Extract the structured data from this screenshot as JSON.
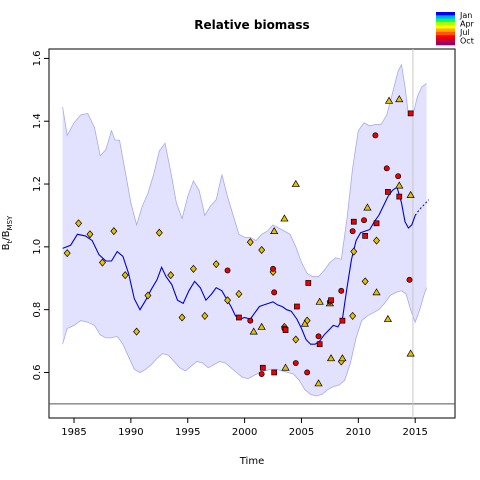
{
  "chart_data": {
    "type": "line",
    "title": "Relative biomass",
    "xlabel": "Time",
    "ylabel_main": "B",
    "ylabel_sub1": "t",
    "ylabel_mid": "/B",
    "ylabel_sub2": "MSY",
    "xlim": [
      1982.8,
      2018.5
    ],
    "ylim": [
      0.455,
      1.63
    ],
    "x_ticks": [
      1985,
      1990,
      1995,
      2000,
      2005,
      2010,
      2015
    ],
    "y_ticks": [
      0.6,
      0.8,
      1.0,
      1.2,
      1.4,
      1.6
    ],
    "x_tick_labels": [
      "1985",
      "1990",
      "1995",
      "2000",
      "2005",
      "2010",
      "2015"
    ],
    "y_tick_labels": [
      "0.6",
      "0.8",
      "1.0",
      "1.2",
      "1.4",
      "1.6"
    ],
    "reference_line_y": 0.5,
    "vertical_line_x": 2014.8,
    "legend": [
      "Jan",
      "Apr",
      "Jul",
      "Oct"
    ],
    "legend_colors": [
      "#0000ff",
      "#00aaff",
      "#00ff66",
      "#aaff00",
      "#ffff00",
      "#ffaa00",
      "#ff5500",
      "#ff0000",
      "#cc0033",
      "#990066"
    ],
    "colors": {
      "estimate_line": "#0000dd",
      "ci_fill": "#e2e2ff",
      "ci_edge": "#a8a8f0",
      "triangle_diamond_fill": "#e8c000",
      "red_fill": "#ee0000"
    },
    "estimate": {
      "x": [
        1984.0,
        1984.7,
        1985.3,
        1986.0,
        1986.6,
        1987.2,
        1987.8,
        1988.3,
        1988.8,
        1989.3,
        1989.8,
        1990.3,
        1990.8,
        1991.3,
        1991.8,
        1992.3,
        1992.7,
        1993.1,
        1993.6,
        1994.1,
        1994.6,
        1995.1,
        1995.6,
        1996.1,
        1996.6,
        1997.1,
        1997.5,
        1998.0,
        1998.4,
        1998.8,
        1999.2,
        1999.6,
        2000.0,
        2000.5,
        2000.9,
        2001.3,
        2001.7,
        2002.1,
        2002.5,
        2002.9,
        2003.3,
        2003.7,
        2004.1,
        2004.6,
        2005.0,
        2005.4,
        2005.8,
        2006.2,
        2006.6,
        2007.0,
        2007.4,
        2007.8,
        2008.2,
        2008.6,
        2009.0,
        2009.4,
        2009.8,
        2010.2,
        2010.6,
        2011.0,
        2011.4,
        2011.8,
        2012.2,
        2012.6,
        2013.0,
        2013.4,
        2013.8,
        2014.1,
        2014.4,
        2014.7,
        2015.0
      ],
      "y": [
        0.995,
        1.005,
        1.04,
        1.035,
        1.02,
        0.975,
        0.955,
        0.955,
        0.985,
        0.97,
        0.915,
        0.835,
        0.8,
        0.83,
        0.865,
        0.895,
        0.935,
        0.905,
        0.88,
        0.83,
        0.82,
        0.86,
        0.89,
        0.87,
        0.83,
        0.85,
        0.87,
        0.86,
        0.835,
        0.81,
        0.78,
        0.77,
        0.775,
        0.77,
        0.79,
        0.81,
        0.815,
        0.82,
        0.825,
        0.815,
        0.81,
        0.8,
        0.795,
        0.77,
        0.74,
        0.705,
        0.69,
        0.69,
        0.7,
        0.72,
        0.735,
        0.75,
        0.745,
        0.77,
        0.87,
        0.96,
        1.02,
        1.045,
        1.05,
        1.055,
        1.08,
        1.1,
        1.13,
        1.16,
        1.18,
        1.19,
        1.14,
        1.08,
        1.06,
        1.07,
        1.1
      ]
    },
    "forecast": {
      "x": [
        2015.0,
        2015.4,
        2015.8,
        2016.2
      ],
      "y": [
        1.1,
        1.12,
        1.135,
        1.15
      ]
    },
    "ci_upper": {
      "x": [
        1984.0,
        1984.4,
        1985.0,
        1985.6,
        1986.2,
        1986.8,
        1987.3,
        1987.8,
        1988.3,
        1988.6,
        1989.0,
        1989.5,
        1990.0,
        1990.5,
        1991.0,
        1991.5,
        1992.0,
        1992.5,
        1993.0,
        1993.5,
        1994.0,
        1994.5,
        1995.0,
        1995.5,
        1996.0,
        1996.5,
        1997.0,
        1997.5,
        1998.0,
        1998.5,
        1999.0,
        1999.5,
        2000.0,
        2000.5,
        2001.0,
        2001.5,
        2002.0,
        2002.5,
        2003.0,
        2003.5,
        2004.0,
        2004.5,
        2005.0,
        2005.5,
        2006.0,
        2006.5,
        2007.0,
        2007.5,
        2008.0,
        2008.5,
        2009.0,
        2009.5,
        2010.0,
        2010.5,
        2011.0,
        2011.5,
        2012.0,
        2012.5,
        2013.0,
        2013.5,
        2013.8,
        2014.1,
        2014.4,
        2014.8,
        2015.2,
        2015.6,
        2016.0
      ],
      "y": [
        1.445,
        1.355,
        1.395,
        1.42,
        1.425,
        1.38,
        1.29,
        1.31,
        1.37,
        1.34,
        1.34,
        1.24,
        1.14,
        1.07,
        1.13,
        1.17,
        1.23,
        1.305,
        1.33,
        1.24,
        1.14,
        1.09,
        1.16,
        1.21,
        1.18,
        1.1,
        1.13,
        1.15,
        1.23,
        1.16,
        1.1,
        1.04,
        1.03,
        1.03,
        1.02,
        1.04,
        1.05,
        1.07,
        1.06,
        1.05,
        1.04,
        1.0,
        0.95,
        0.915,
        0.905,
        0.905,
        0.925,
        0.95,
        0.965,
        0.96,
        1.09,
        1.25,
        1.37,
        1.395,
        1.385,
        1.39,
        1.39,
        1.42,
        1.49,
        1.56,
        1.58,
        1.51,
        1.42,
        1.42,
        1.48,
        1.51,
        1.52
      ]
    },
    "ci_lower": {
      "x": [
        1984.0,
        1984.4,
        1985.0,
        1985.6,
        1986.2,
        1986.8,
        1987.3,
        1987.8,
        1988.3,
        1988.8,
        1989.3,
        1989.8,
        1990.3,
        1990.8,
        1991.3,
        1991.8,
        1992.3,
        1992.8,
        1993.3,
        1993.8,
        1994.3,
        1994.8,
        1995.3,
        1995.8,
        1996.3,
        1996.8,
        1997.3,
        1997.8,
        1998.3,
        1998.8,
        1999.3,
        1999.8,
        2000.3,
        2000.8,
        2001.3,
        2001.8,
        2002.3,
        2002.8,
        2003.3,
        2003.8,
        2004.3,
        2004.8,
        2005.3,
        2005.8,
        2006.3,
        2006.8,
        2007.3,
        2007.8,
        2008.3,
        2008.8,
        2009.3,
        2009.8,
        2010.3,
        2010.8,
        2011.3,
        2011.8,
        2012.3,
        2012.8,
        2013.3,
        2013.8,
        2014.2,
        2014.6,
        2015.0,
        2015.4,
        2015.8,
        2016.0
      ],
      "y": [
        0.69,
        0.74,
        0.75,
        0.765,
        0.76,
        0.75,
        0.72,
        0.71,
        0.71,
        0.715,
        0.69,
        0.65,
        0.61,
        0.6,
        0.61,
        0.625,
        0.645,
        0.66,
        0.655,
        0.635,
        0.615,
        0.605,
        0.62,
        0.635,
        0.63,
        0.615,
        0.625,
        0.635,
        0.63,
        0.615,
        0.6,
        0.585,
        0.58,
        0.59,
        0.6,
        0.605,
        0.61,
        0.61,
        0.605,
        0.6,
        0.595,
        0.575,
        0.545,
        0.53,
        0.525,
        0.53,
        0.545,
        0.555,
        0.56,
        0.575,
        0.63,
        0.71,
        0.765,
        0.78,
        0.79,
        0.8,
        0.82,
        0.845,
        0.855,
        0.86,
        0.85,
        0.8,
        0.76,
        0.8,
        0.85,
        0.87
      ]
    },
    "points_triangle": [
      {
        "x": 2000.8,
        "y": 0.73
      },
      {
        "x": 2001.5,
        "y": 0.745
      },
      {
        "x": 2002.6,
        "y": 1.05
      },
      {
        "x": 2003.5,
        "y": 1.09
      },
      {
        "x": 2003.6,
        "y": 0.615
      },
      {
        "x": 2004.5,
        "y": 1.2
      },
      {
        "x": 2005.3,
        "y": 0.755
      },
      {
        "x": 2006.5,
        "y": 0.565
      },
      {
        "x": 2006.6,
        "y": 0.825
      },
      {
        "x": 2007.5,
        "y": 0.82
      },
      {
        "x": 2007.6,
        "y": 0.645
      },
      {
        "x": 2008.6,
        "y": 0.645
      },
      {
        "x": 2010.8,
        "y": 1.125
      },
      {
        "x": 2011.6,
        "y": 0.855
      },
      {
        "x": 2012.6,
        "y": 0.77
      },
      {
        "x": 2012.7,
        "y": 1.465
      },
      {
        "x": 2013.6,
        "y": 1.47
      },
      {
        "x": 2013.6,
        "y": 1.195
      },
      {
        "x": 2014.6,
        "y": 1.165
      },
      {
        "x": 2014.6,
        "y": 0.66
      }
    ],
    "points_diamond": [
      {
        "x": 1984.4,
        "y": 0.98
      },
      {
        "x": 1985.4,
        "y": 1.075
      },
      {
        "x": 1986.4,
        "y": 1.04
      },
      {
        "x": 1987.5,
        "y": 0.95
      },
      {
        "x": 1988.5,
        "y": 1.05
      },
      {
        "x": 1989.5,
        "y": 0.91
      },
      {
        "x": 1990.5,
        "y": 0.73
      },
      {
        "x": 1991.5,
        "y": 0.845
      },
      {
        "x": 1992.5,
        "y": 1.045
      },
      {
        "x": 1993.5,
        "y": 0.91
      },
      {
        "x": 1994.5,
        "y": 0.775
      },
      {
        "x": 1995.5,
        "y": 0.93
      },
      {
        "x": 1996.5,
        "y": 0.78
      },
      {
        "x": 1997.5,
        "y": 0.945
      },
      {
        "x": 1998.5,
        "y": 0.83
      },
      {
        "x": 1999.5,
        "y": 0.85
      },
      {
        "x": 2000.5,
        "y": 1.015
      },
      {
        "x": 2001.5,
        "y": 0.99
      },
      {
        "x": 2002.5,
        "y": 0.92
      },
      {
        "x": 2003.5,
        "y": 0.745
      },
      {
        "x": 2004.5,
        "y": 0.705
      },
      {
        "x": 2005.5,
        "y": 0.765
      },
      {
        "x": 2008.5,
        "y": 0.635
      },
      {
        "x": 2009.5,
        "y": 0.78
      },
      {
        "x": 2009.6,
        "y": 0.985
      },
      {
        "x": 2010.6,
        "y": 0.89
      },
      {
        "x": 2011.6,
        "y": 1.02
      }
    ],
    "points_circle": [
      {
        "x": 1998.5,
        "y": 0.925
      },
      {
        "x": 2000.5,
        "y": 0.765
      },
      {
        "x": 2001.5,
        "y": 0.595
      },
      {
        "x": 2002.5,
        "y": 0.93
      },
      {
        "x": 2002.6,
        "y": 0.855
      },
      {
        "x": 2003.5,
        "y": 0.74
      },
      {
        "x": 2004.5,
        "y": 0.63
      },
      {
        "x": 2005.5,
        "y": 0.6
      },
      {
        "x": 2006.5,
        "y": 0.715
      },
      {
        "x": 2007.5,
        "y": 0.825
      },
      {
        "x": 2008.5,
        "y": 0.86
      },
      {
        "x": 2009.5,
        "y": 1.05
      },
      {
        "x": 2010.5,
        "y": 1.085
      },
      {
        "x": 2011.5,
        "y": 1.355
      },
      {
        "x": 2012.5,
        "y": 1.25
      },
      {
        "x": 2013.5,
        "y": 1.225
      },
      {
        "x": 2014.5,
        "y": 0.895
      }
    ],
    "points_square": [
      {
        "x": 1999.5,
        "y": 0.775
      },
      {
        "x": 2001.6,
        "y": 0.615
      },
      {
        "x": 2002.6,
        "y": 0.6
      },
      {
        "x": 2003.6,
        "y": 0.735
      },
      {
        "x": 2004.6,
        "y": 0.81
      },
      {
        "x": 2005.6,
        "y": 0.885
      },
      {
        "x": 2006.6,
        "y": 0.69
      },
      {
        "x": 2007.6,
        "y": 0.83
      },
      {
        "x": 2008.6,
        "y": 0.765
      },
      {
        "x": 2009.6,
        "y": 1.08
      },
      {
        "x": 2010.6,
        "y": 1.035
      },
      {
        "x": 2011.6,
        "y": 1.075
      },
      {
        "x": 2012.6,
        "y": 1.175
      },
      {
        "x": 2013.6,
        "y": 1.16
      },
      {
        "x": 2014.6,
        "y": 1.425
      }
    ]
  }
}
